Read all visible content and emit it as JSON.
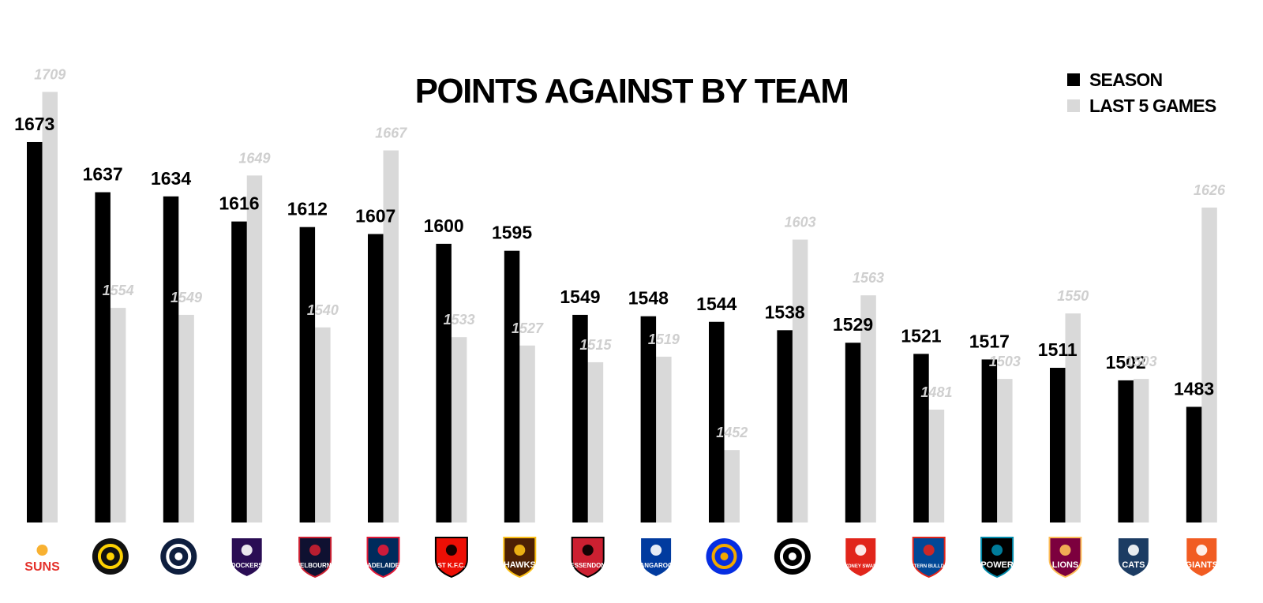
{
  "chart_data": {
    "type": "bar",
    "title": "POINTS AGAINST BY TEAM",
    "xlabel": "",
    "ylabel": "",
    "ylim": [
      1400,
      1720
    ],
    "grid": false,
    "legend_position": "top-right",
    "categories": [
      "SUNS",
      "Tigers",
      "Blues",
      "DOCKERS",
      "MELBOURNE",
      "ADELAIDE",
      "ST K.F.C.",
      "HAWKS",
      "ESSENDON",
      "KANGAROOS",
      "Eagles",
      "Magpies",
      "SYDNEY SWANS",
      "WESTERN BULLDOGS",
      "POWER",
      "LIONS",
      "CATS",
      "GIANTS"
    ],
    "series": [
      {
        "name": "SEASON",
        "color": "#000000",
        "values": [
          1673,
          1637,
          1634,
          1616,
          1612,
          1607,
          1600,
          1595,
          1549,
          1548,
          1544,
          1538,
          1529,
          1521,
          1517,
          1511,
          1502,
          1483
        ]
      },
      {
        "name": "LAST 5 GAMES",
        "color": "#d9d9d9",
        "values": [
          1709,
          1554,
          1549,
          1649,
          1540,
          1667,
          1533,
          1527,
          1515,
          1519,
          1452,
          1603,
          1563,
          1481,
          1503,
          1550,
          1503,
          1626
        ]
      }
    ]
  },
  "logos": [
    {
      "name": "suns",
      "icon": "suns-logo",
      "text": "SUNS",
      "color": "#e4312b",
      "accent": "#f7a81b"
    },
    {
      "name": "tigers",
      "icon": "tiger-logo",
      "text": "",
      "color": "#111111",
      "accent": "#fed102"
    },
    {
      "name": "blues",
      "icon": "blues-logo",
      "text": "",
      "color": "#0e1e3e",
      "accent": "#ffffff"
    },
    {
      "name": "dockers",
      "icon": "dockers-logo",
      "text": "DOCKERS",
      "color": "#2a0d54",
      "accent": "#ffffff"
    },
    {
      "name": "melbourne",
      "icon": "melbourne-logo",
      "text": "MELBOURNE",
      "color": "#0f1131",
      "accent": "#cc2031"
    },
    {
      "name": "adelaide",
      "icon": "crows-logo",
      "text": "ADELAIDE",
      "color": "#002b5c",
      "accent": "#e21937"
    },
    {
      "name": "stkilda",
      "icon": "saints-logo",
      "text": "ST K.F.C.",
      "color": "#ed0f05",
      "accent": "#000000"
    },
    {
      "name": "hawks",
      "icon": "hawks-logo",
      "text": "HAWKS",
      "color": "#4d2004",
      "accent": "#fbbf15"
    },
    {
      "name": "essendon",
      "icon": "bombers-logo",
      "text": "ESSENDON",
      "color": "#cc2031",
      "accent": "#000000"
    },
    {
      "name": "kangaroos",
      "icon": "kangaroos-logo",
      "text": "KANGAROOS",
      "color": "#013b9f",
      "accent": "#ffffff"
    },
    {
      "name": "eagles",
      "icon": "eagles-logo",
      "text": "",
      "color": "#062ee2",
      "accent": "#f2a900"
    },
    {
      "name": "magpies",
      "icon": "magpies-logo",
      "text": "",
      "color": "#000000",
      "accent": "#ffffff"
    },
    {
      "name": "swans",
      "icon": "swans-logo",
      "text": "SYDNEY SWANS",
      "color": "#e1251b",
      "accent": "#ffffff"
    },
    {
      "name": "bulldogs",
      "icon": "bulldogs-logo",
      "text": "WESTERN BULLDOGS",
      "color": "#014896",
      "accent": "#e1251b"
    },
    {
      "name": "power",
      "icon": "power-logo",
      "text": "POWER",
      "color": "#000000",
      "accent": "#008aab"
    },
    {
      "name": "lions",
      "icon": "lions-logo",
      "text": "LIONS",
      "color": "#7c003e",
      "accent": "#fdbe57"
    },
    {
      "name": "cats",
      "icon": "cats-logo",
      "text": "CATS",
      "color": "#1c3c63",
      "accent": "#ffffff"
    },
    {
      "name": "giants",
      "icon": "giants-logo",
      "text": "GIANTS",
      "color": "#f15c22",
      "accent": "#ffffff"
    }
  ]
}
